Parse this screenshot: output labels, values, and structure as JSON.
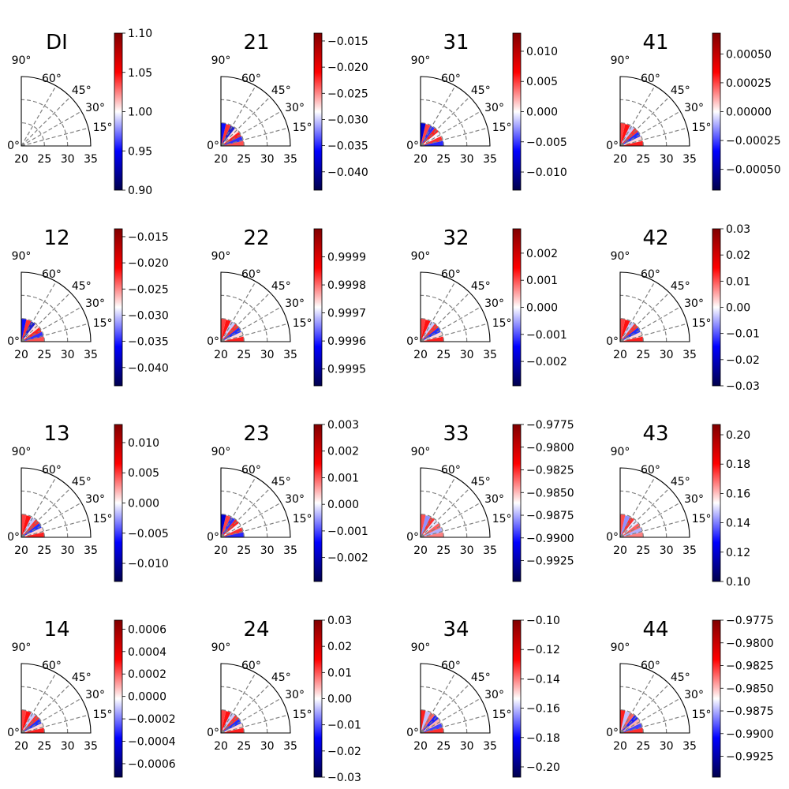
{
  "chart_data": [
    {
      "type": "heatmap",
      "title": "DI",
      "cbar": {
        "ticks": [
          0.9,
          0.95,
          1.0,
          1.05,
          1.1
        ],
        "tick_labels": [
          "0.90",
          "0.95",
          "1.00",
          "1.05",
          "1.10"
        ],
        "range": [
          0.9,
          1.1
        ]
      },
      "radial_ticks": [
        "20",
        "25",
        "30",
        "35"
      ],
      "angle_ticks": [
        "0°",
        "15°",
        "30°",
        "45°",
        "60°",
        "90°"
      ],
      "pattern": "blank"
    },
    {
      "type": "heatmap",
      "title": "21",
      "cbar": {
        "ticks": [
          -0.015,
          -0.02,
          -0.025,
          -0.03,
          -0.035,
          -0.04
        ],
        "tick_labels": [
          "−0.015",
          "−0.020",
          "−0.025",
          "−0.030",
          "−0.035",
          "−0.040"
        ],
        "range": [
          -0.0435,
          -0.0135
        ]
      },
      "radial_ticks": [
        "20",
        "25",
        "30",
        "35"
      ],
      "angle_ticks": [
        "0°",
        "15°",
        "30°",
        "45°",
        "60°",
        "90°"
      ],
      "pattern": "a"
    },
    {
      "type": "heatmap",
      "title": "31",
      "cbar": {
        "ticks": [
          0.01,
          0.005,
          0.0,
          -0.005,
          -0.01
        ],
        "tick_labels": [
          "0.010",
          "0.005",
          "0.000",
          "−0.005",
          "−0.010"
        ],
        "range": [
          -0.013,
          0.013
        ]
      },
      "radial_ticks": [
        "20",
        "25",
        "30",
        "35"
      ],
      "angle_ticks": [
        "0°",
        "15°",
        "30°",
        "45°",
        "60°",
        "90°"
      ],
      "pattern": "b"
    },
    {
      "type": "heatmap",
      "title": "41",
      "cbar": {
        "ticks": [
          0.0005,
          0.00025,
          0,
          -0.00025,
          -0.0005
        ],
        "tick_labels": [
          "0.00050",
          "0.00025",
          "0.00000",
          "−0.00025",
          "−0.00050"
        ],
        "range": [
          -0.00068,
          0.00068
        ]
      },
      "radial_ticks": [
        "20",
        "25",
        "30",
        "35"
      ],
      "angle_ticks": [
        "0°",
        "15°",
        "30°",
        "45°",
        "60°",
        "90°"
      ],
      "pattern": "c"
    },
    {
      "type": "heatmap",
      "title": "12",
      "cbar": {
        "ticks": [
          -0.015,
          -0.02,
          -0.025,
          -0.03,
          -0.035,
          -0.04
        ],
        "tick_labels": [
          "−0.015",
          "−0.020",
          "−0.025",
          "−0.030",
          "−0.035",
          "−0.040"
        ],
        "range": [
          -0.0435,
          -0.0135
        ]
      },
      "radial_ticks": [
        "20",
        "25",
        "30",
        "35"
      ],
      "angle_ticks": [
        "0°",
        "15°",
        "30°",
        "45°",
        "60°",
        "90°"
      ],
      "pattern": "a"
    },
    {
      "type": "heatmap",
      "title": "22",
      "cbar": {
        "ticks": [
          0.9999,
          0.9998,
          0.9997,
          0.9996,
          0.9995
        ],
        "tick_labels": [
          "0.9999",
          "0.9998",
          "0.9997",
          "0.9996",
          "0.9995"
        ],
        "range": [
          0.99944,
          1.0
        ]
      },
      "radial_ticks": [
        "20",
        "25",
        "30",
        "35"
      ],
      "angle_ticks": [
        "0°",
        "15°",
        "30°",
        "45°",
        "60°",
        "90°"
      ],
      "pattern": "c"
    },
    {
      "type": "heatmap",
      "title": "32",
      "cbar": {
        "ticks": [
          0.002,
          0.001,
          0.0,
          -0.001,
          -0.002
        ],
        "tick_labels": [
          "0.002",
          "0.001",
          "0.000",
          "−0.001",
          "−0.002"
        ],
        "range": [
          -0.0029,
          0.0029
        ]
      },
      "radial_ticks": [
        "20",
        "25",
        "30",
        "35"
      ],
      "angle_ticks": [
        "0°",
        "15°",
        "30°",
        "45°",
        "60°",
        "90°"
      ],
      "pattern": "c"
    },
    {
      "type": "heatmap",
      "title": "42",
      "cbar": {
        "ticks": [
          0.03,
          0.02,
          0.01,
          0.0,
          -0.01,
          -0.02,
          -0.03
        ],
        "tick_labels": [
          "0.03",
          "0.02",
          "0.01",
          "0.00",
          "−0.01",
          "−0.02",
          "−0.03"
        ],
        "range": [
          -0.03,
          0.03
        ]
      },
      "radial_ticks": [
        "20",
        "25",
        "30",
        "35"
      ],
      "angle_ticks": [
        "0°",
        "15°",
        "30°",
        "45°",
        "60°",
        "90°"
      ],
      "pattern": "c"
    },
    {
      "type": "heatmap",
      "title": "13",
      "cbar": {
        "ticks": [
          0.01,
          0.005,
          0.0,
          -0.005,
          -0.01
        ],
        "tick_labels": [
          "0.010",
          "0.005",
          "0.000",
          "−0.005",
          "−0.010"
        ],
        "range": [
          -0.013,
          0.013
        ]
      },
      "radial_ticks": [
        "20",
        "25",
        "30",
        "35"
      ],
      "angle_ticks": [
        "0°",
        "15°",
        "30°",
        "45°",
        "60°",
        "90°"
      ],
      "pattern": "c"
    },
    {
      "type": "heatmap",
      "title": "23",
      "cbar": {
        "ticks": [
          0.003,
          0.002,
          0.001,
          0.0,
          -0.001,
          -0.002
        ],
        "tick_labels": [
          "0.003",
          "0.002",
          "0.001",
          "0.000",
          "−0.001",
          "−0.002"
        ],
        "range": [
          -0.0029,
          0.003
        ]
      },
      "radial_ticks": [
        "20",
        "25",
        "30",
        "35"
      ],
      "angle_ticks": [
        "0°",
        "15°",
        "30°",
        "45°",
        "60°",
        "90°"
      ],
      "pattern": "b"
    },
    {
      "type": "heatmap",
      "title": "33",
      "cbar": {
        "ticks": [
          -0.9775,
          -0.98,
          -0.9825,
          -0.985,
          -0.9875,
          -0.99,
          -0.9925
        ],
        "tick_labels": [
          "−0.9775",
          "−0.9800",
          "−0.9825",
          "−0.9850",
          "−0.9875",
          "−0.9900",
          "−0.9925"
        ],
        "range": [
          -0.9948,
          -0.9775
        ]
      },
      "radial_ticks": [
        "20",
        "25",
        "30",
        "35"
      ],
      "angle_ticks": [
        "0°",
        "15°",
        "30°",
        "45°",
        "60°",
        "90°"
      ],
      "pattern": "d"
    },
    {
      "type": "heatmap",
      "title": "43",
      "cbar": {
        "ticks": [
          0.2,
          0.18,
          0.16,
          0.14,
          0.12,
          0.1
        ],
        "tick_labels": [
          "0.20",
          "0.18",
          "0.16",
          "0.14",
          "0.12",
          "0.10"
        ],
        "range": [
          0.1,
          0.207
        ]
      },
      "radial_ticks": [
        "20",
        "25",
        "30",
        "35"
      ],
      "angle_ticks": [
        "0°",
        "15°",
        "30°",
        "45°",
        "60°",
        "90°"
      ],
      "pattern": "d"
    },
    {
      "type": "heatmap",
      "title": "14",
      "cbar": {
        "ticks": [
          0.0006,
          0.0004,
          0.0002,
          0,
          -0.0002,
          -0.0004,
          -0.0006
        ],
        "tick_labels": [
          "0.0006",
          "0.0004",
          "0.0002",
          "0.0000",
          "−0.0002",
          "−0.0004",
          "−0.0006"
        ],
        "range": [
          -0.00072,
          0.00068
        ]
      },
      "radial_ticks": [
        "20",
        "25",
        "30",
        "35"
      ],
      "angle_ticks": [
        "0°",
        "15°",
        "30°",
        "45°",
        "60°",
        "90°"
      ],
      "pattern": "c"
    },
    {
      "type": "heatmap",
      "title": "24",
      "cbar": {
        "ticks": [
          0.03,
          0.02,
          0.01,
          0.0,
          -0.01,
          -0.02,
          -0.03
        ],
        "tick_labels": [
          "0.03",
          "0.02",
          "0.01",
          "0.00",
          "−0.01",
          "−0.02",
          "−0.03"
        ],
        "range": [
          -0.03,
          0.03
        ]
      },
      "radial_ticks": [
        "20",
        "25",
        "30",
        "35"
      ],
      "angle_ticks": [
        "0°",
        "15°",
        "30°",
        "45°",
        "60°",
        "90°"
      ],
      "pattern": "c"
    },
    {
      "type": "heatmap",
      "title": "34",
      "cbar": {
        "ticks": [
          -0.1,
          -0.12,
          -0.14,
          -0.16,
          -0.18,
          -0.2
        ],
        "tick_labels": [
          "−0.10",
          "−0.12",
          "−0.14",
          "−0.16",
          "−0.18",
          "−0.20"
        ],
        "range": [
          -0.207,
          -0.1
        ]
      },
      "radial_ticks": [
        "20",
        "25",
        "30",
        "35"
      ],
      "angle_ticks": [
        "0°",
        "15°",
        "30°",
        "45°",
        "60°",
        "90°"
      ],
      "pattern": "e"
    },
    {
      "type": "heatmap",
      "title": "44",
      "cbar": {
        "ticks": [
          -0.9775,
          -0.98,
          -0.9825,
          -0.985,
          -0.9875,
          -0.99,
          -0.9925
        ],
        "tick_labels": [
          "−0.9775",
          "−0.9800",
          "−0.9825",
          "−0.9850",
          "−0.9875",
          "−0.9900",
          "−0.9925"
        ],
        "range": [
          -0.9948,
          -0.9775
        ]
      },
      "radial_ticks": [
        "20",
        "25",
        "30",
        "35"
      ],
      "angle_ticks": [
        "0°",
        "15°",
        "30°",
        "45°",
        "60°",
        "90°"
      ],
      "pattern": "e"
    }
  ],
  "colormap": [
    "#00004c",
    "#0000ff",
    "#ffffff",
    "#ff0000",
    "#800000"
  ],
  "grid": "dashed"
}
